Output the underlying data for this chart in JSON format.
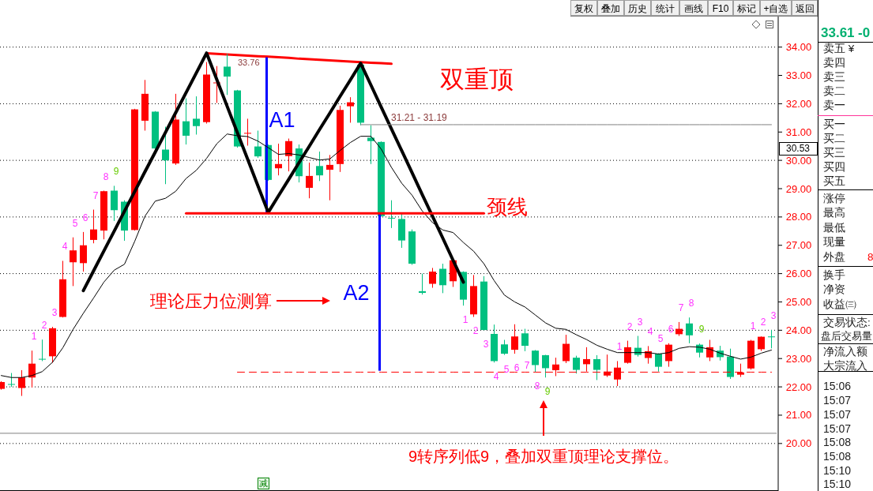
{
  "chart_data": {
    "type": "candlestick",
    "categories": [
      null,
      null,
      null,
      null,
      null,
      null,
      null,
      null,
      null,
      null,
      null,
      null,
      null,
      null,
      null,
      null,
      null,
      null,
      null,
      null,
      null,
      null,
      null,
      null,
      null,
      null,
      null,
      null,
      null,
      null,
      null,
      null,
      null,
      null,
      null,
      null,
      null,
      null,
      null,
      null,
      null,
      null,
      null,
      null,
      null,
      null,
      null,
      null,
      null,
      null,
      null,
      null,
      null,
      null,
      null,
      null,
      null,
      null,
      null,
      null,
      null,
      null,
      null,
      null,
      null,
      null,
      null,
      null,
      null,
      null,
      null,
      null,
      null,
      null,
      null,
      null
    ],
    "ohlc": [
      [
        21.93,
        22.2,
        21.9,
        22.17
      ],
      [
        22.1,
        22.49,
        22.0,
        22.08
      ],
      [
        21.96,
        22.59,
        21.68,
        22.33
      ],
      [
        22.33,
        23.28,
        21.98,
        22.82
      ],
      [
        22.99,
        23.67,
        22.91,
        22.97
      ],
      [
        23.08,
        24.12,
        22.85,
        24.07
      ],
      [
        24.47,
        26.45,
        24.45,
        25.8
      ],
      [
        26.4,
        27.28,
        25.56,
        26.82
      ],
      [
        26.37,
        27.47,
        26.07,
        27.0
      ],
      [
        27.19,
        28.26,
        27.07,
        27.56
      ],
      [
        27.52,
        28.93,
        27.21,
        28.91
      ],
      [
        28.93,
        29.1,
        27.86,
        28.24
      ],
      [
        28.54,
        28.59,
        27.16,
        27.52
      ],
      [
        27.54,
        31.82,
        27.52,
        31.8
      ],
      [
        31.4,
        32.84,
        31.05,
        32.35
      ],
      [
        31.72,
        31.74,
        30.4,
        30.42
      ],
      [
        30.38,
        31.19,
        29.16,
        30.0
      ],
      [
        29.89,
        32.35,
        29.84,
        31.44
      ],
      [
        31.38,
        32.19,
        30.56,
        30.87
      ],
      [
        31.47,
        32.26,
        30.91,
        31.21
      ],
      [
        31.35,
        33.47,
        31.3,
        33.03
      ],
      [
        32.73,
        33.33,
        32.03,
        32.75
      ],
      [
        33.31,
        33.76,
        32.31,
        32.96
      ],
      [
        32.47,
        32.49,
        30.45,
        30.49
      ],
      [
        30.95,
        31.47,
        30.52,
        30.97
      ],
      [
        30.49,
        31.05,
        30.09,
        30.14
      ],
      [
        30.54,
        30.56,
        29.28,
        29.31
      ],
      [
        29.72,
        30.59,
        29.47,
        29.87
      ],
      [
        30.15,
        30.77,
        29.61,
        30.68
      ],
      [
        30.42,
        30.56,
        29.22,
        29.44
      ],
      [
        29.03,
        29.92,
        28.66,
        29.45
      ],
      [
        29.8,
        30.31,
        29.27,
        29.47
      ],
      [
        29.67,
        30.19,
        28.59,
        29.84
      ],
      [
        29.87,
        31.93,
        29.59,
        31.78
      ],
      [
        31.91,
        32.23,
        31.33,
        32.05
      ],
      [
        33.38,
        33.42,
        31.24,
        31.33
      ],
      [
        30.8,
        31.24,
        29.87,
        30.68
      ],
      [
        30.65,
        30.67,
        28.01,
        28.03
      ],
      [
        27.97,
        28.59,
        27.61,
        27.95
      ],
      [
        27.93,
        28.12,
        26.91,
        27.17
      ],
      [
        27.49,
        27.56,
        26.31,
        26.35
      ],
      [
        25.38,
        26.0,
        25.26,
        25.32
      ],
      [
        25.64,
        26.2,
        25.5,
        26.07
      ],
      [
        26.17,
        26.35,
        25.31,
        25.59
      ],
      [
        25.73,
        26.49,
        25.53,
        26.47
      ],
      [
        26.06,
        26.08,
        24.87,
        25.08
      ],
      [
        24.56,
        25.95,
        24.47,
        25.56
      ],
      [
        25.72,
        25.91,
        24.0,
        24.01
      ],
      [
        23.87,
        24.2,
        22.86,
        22.91
      ],
      [
        23.5,
        23.66,
        23.13,
        23.17
      ],
      [
        23.31,
        24.21,
        23.17,
        23.78
      ],
      [
        23.89,
        24.05,
        23.26,
        23.45
      ],
      [
        23.28,
        23.3,
        22.52,
        22.77
      ],
      [
        23.12,
        23.13,
        22.33,
        22.66
      ],
      [
        22.59,
        23.03,
        22.38,
        22.79
      ],
      [
        22.91,
        23.84,
        22.84,
        23.52
      ],
      [
        23.03,
        23.1,
        22.47,
        22.6
      ],
      [
        22.8,
        23.4,
        22.54,
        22.98
      ],
      [
        22.98,
        23.12,
        22.24,
        22.6
      ],
      [
        22.4,
        23.14,
        22.35,
        22.54
      ],
      [
        22.26,
        22.91,
        22.03,
        22.68
      ],
      [
        22.85,
        23.63,
        22.82,
        23.4
      ],
      [
        23.38,
        23.8,
        23.07,
        23.13
      ],
      [
        23.02,
        23.44,
        22.82,
        23.26
      ],
      [
        23.17,
        23.19,
        22.54,
        22.71
      ],
      [
        22.91,
        23.54,
        22.71,
        23.49
      ],
      [
        23.86,
        24.29,
        23.8,
        24.05
      ],
      [
        24.24,
        24.45,
        23.54,
        23.82
      ],
      [
        23.49,
        23.53,
        23.04,
        23.21
      ],
      [
        23.04,
        23.66,
        22.91,
        23.4
      ],
      [
        23.28,
        23.45,
        22.93,
        23.05
      ],
      [
        23.07,
        23.35,
        22.28,
        22.35
      ],
      [
        22.43,
        22.82,
        22.35,
        22.51
      ],
      [
        22.65,
        23.66,
        22.61,
        23.63
      ],
      [
        23.33,
        23.78,
        23.27,
        23.77
      ],
      [
        23.78,
        24.01,
        23.36,
        23.76
      ]
    ],
    "colors": [
      "#ff0000",
      "#00c080",
      "#ff0000",
      "#ff0000",
      "#00c080",
      "#ff0000",
      "#ff0000",
      "#ff0000",
      "#ff0000",
      "#ff0000",
      "#ff0000",
      "#00c080",
      "#00c080",
      "#ff0000",
      "#ff0000",
      "#00c080",
      "#00c080",
      "#ff0000",
      "#00c080",
      "#00c080",
      "#ff0000",
      "#ff0000",
      "#00c080",
      "#00c080",
      "#ff0000",
      "#00c080",
      "#00c080",
      "#ff0000",
      "#ff0000",
      "#00c080",
      "#ff0000",
      "#00c080",
      "#ff0000",
      "#ff0000",
      "#ff0000",
      "#00c080",
      "#00c080",
      "#00c080",
      "#00c080",
      "#00c080",
      "#00c080",
      "#00c080",
      "#ff0000",
      "#00c080",
      "#ff0000",
      "#00c080",
      "#ff0000",
      "#00c080",
      "#00c080",
      "#00c080",
      "#ff0000",
      "#00c080",
      "#00c080",
      "#00c080",
      "#ff0000",
      "#ff0000",
      "#00c080",
      "#ff0000",
      "#00c080",
      "#ff0000",
      "#ff0000",
      "#ff0000",
      "#00c080",
      "#ff0000",
      "#00c080",
      "#ff0000",
      "#ff0000",
      "#00c080",
      "#00c080",
      "#ff0000",
      "#00c080",
      "#00c080",
      "#ff0000",
      "#ff0000",
      "#ff0000",
      "#00c080"
    ],
    "series": [
      {
        "type": "line",
        "color": "#000000",
        "values": [
          22.4,
          22.33,
          22.33,
          22.4,
          22.54,
          22.87,
          23.38,
          24.03,
          24.6,
          25.14,
          25.7,
          26.12,
          26.33,
          27.14,
          28.03,
          28.56,
          28.66,
          28.91,
          29.36,
          29.65,
          30.07,
          30.59,
          30.93,
          30.87,
          30.84,
          30.68,
          30.45,
          30.21,
          30.24,
          30.19,
          30.1,
          30.01,
          30.05,
          30.35,
          30.63,
          30.85,
          30.85,
          30.4,
          29.75,
          29.19,
          28.77,
          28.21,
          27.8,
          27.54,
          27.45,
          27.1,
          26.79,
          26.35,
          25.75,
          25.24,
          25.0,
          24.82,
          24.54,
          24.26,
          24.07,
          24.03,
          23.84,
          23.67,
          23.47,
          23.33,
          23.21,
          23.21,
          23.21,
          23.21,
          23.16,
          23.21,
          23.36,
          23.42,
          23.4,
          23.33,
          23.19,
          23.08,
          22.98,
          23.05,
          23.19,
          23.3
        ]
      },
      {
        "type": "line",
        "color": "#000000",
        "values": [
          null,
          null,
          null,
          null,
          null,
          null,
          null,
          null,
          25.4,
          26.1,
          26.8,
          27.5,
          28.2,
          28.9,
          29.6,
          30.29,
          30.99,
          31.69,
          32.39,
          33.09,
          33.79,
          32.85,
          31.91,
          30.97,
          30.04,
          29.1,
          28.16,
          28.75,
          29.33,
          29.92,
          30.5,
          31.09,
          31.67,
          32.26,
          32.84,
          33.43,
          32.66,
          31.88,
          31.11,
          30.34,
          29.57,
          28.79,
          28.02,
          27.25,
          26.47,
          25.7,
          null,
          null,
          null,
          null,
          null,
          null,
          null,
          null,
          null,
          null,
          null,
          null,
          null,
          null,
          null,
          null,
          null,
          null,
          null,
          null,
          null,
          null,
          null,
          null,
          null,
          null,
          null,
          null,
          null,
          null
        ]
      },
      {
        "type": "line",
        "color": "#ff0000",
        "values": [
          null,
          null,
          null,
          null,
          null,
          null,
          null,
          null,
          null,
          null,
          null,
          null,
          null,
          null,
          null,
          null,
          null,
          null,
          null,
          null,
          33.78,
          33.76,
          33.74,
          33.72,
          33.7,
          33.68,
          33.66,
          33.64,
          33.62,
          33.59,
          33.57,
          33.55,
          33.53,
          33.51,
          33.49,
          33.47,
          33.45,
          33.43,
          33.41,
          null,
          null,
          null,
          null,
          null,
          null,
          null,
          null,
          null,
          null,
          null,
          null,
          null,
          null,
          null,
          null,
          null,
          null,
          null,
          null,
          null,
          null,
          null,
          null,
          null,
          null,
          null,
          null,
          null,
          null,
          null,
          null,
          null,
          null,
          null,
          null,
          null
        ]
      },
      {
        "type": "line",
        "color": "#ff0000",
        "values": [
          null,
          null,
          null,
          null,
          null,
          null,
          null,
          null,
          null,
          null,
          null,
          null,
          null,
          null,
          null,
          null,
          null,
          null,
          28.13,
          28.13,
          28.13,
          28.13,
          28.13,
          28.13,
          28.13,
          28.13,
          28.13,
          28.13,
          28.13,
          28.13,
          28.13,
          28.13,
          28.13,
          28.13,
          28.13,
          28.13,
          28.13,
          28.13,
          28.13,
          28.13,
          28.13,
          28.13,
          28.13,
          28.13,
          28.13,
          28.13,
          28.13,
          28.13,
          null,
          null,
          null,
          null,
          null,
          null,
          null,
          null,
          null,
          null,
          null,
          null,
          null,
          null,
          null,
          null,
          null,
          null,
          null,
          null,
          null,
          null,
          null,
          null,
          null,
          null,
          null,
          null
        ]
      },
      {
        "type": "bar",
        "color": "#0000ff",
        "values": [
          null,
          null,
          null,
          null,
          null,
          null,
          null,
          null,
          null,
          null,
          null,
          null,
          null,
          null,
          null,
          null,
          null,
          null,
          null,
          null,
          null,
          null,
          null,
          null,
          null,
          null,
          5.48,
          null,
          null,
          null,
          null,
          null,
          null,
          null,
          null,
          null,
          null,
          null,
          null,
          null,
          null,
          null,
          null,
          null,
          null,
          null,
          null,
          null,
          null,
          null,
          null,
          null,
          null,
          null,
          null,
          null,
          null,
          null,
          null,
          null,
          null,
          null,
          null,
          null,
          null,
          null,
          null,
          null,
          null,
          null,
          null,
          null,
          null,
          null,
          null,
          null
        ],
        "base": [
          null,
          null,
          null,
          null,
          null,
          null,
          null,
          null,
          null,
          null,
          null,
          null,
          null,
          null,
          null,
          null,
          null,
          null,
          null,
          null,
          null,
          null,
          null,
          null,
          null,
          null,
          28.16,
          null,
          null,
          null,
          null,
          null,
          null,
          null,
          null,
          null,
          null,
          null,
          null,
          null,
          null,
          null,
          null,
          null,
          null,
          null,
          null,
          null,
          null,
          null,
          null,
          null,
          null,
          null,
          null,
          null,
          null,
          null,
          null,
          null,
          null,
          null,
          null,
          null,
          null,
          null,
          null,
          null,
          null,
          null,
          null,
          null,
          null,
          null,
          null,
          null
        ]
      },
      {
        "type": "bar",
        "color": "#0000ff",
        "values": [
          null,
          null,
          null,
          null,
          null,
          null,
          null,
          null,
          null,
          null,
          null,
          null,
          null,
          null,
          null,
          null,
          null,
          null,
          null,
          null,
          null,
          null,
          null,
          null,
          null,
          null,
          null,
          null,
          null,
          null,
          null,
          null,
          null,
          null,
          null,
          null,
          null,
          5.56,
          null,
          null,
          null,
          null,
          null,
          null,
          null,
          null,
          null,
          null,
          null,
          null,
          null,
          null,
          null,
          null,
          null,
          null,
          null,
          null,
          null,
          null,
          null,
          null,
          null,
          null,
          null,
          null,
          null,
          null,
          null,
          null,
          null,
          null,
          null,
          null,
          null,
          null
        ],
        "base": [
          null,
          null,
          null,
          null,
          null,
          null,
          null,
          null,
          null,
          null,
          null,
          null,
          null,
          null,
          null,
          null,
          null,
          null,
          null,
          null,
          null,
          null,
          null,
          null,
          null,
          null,
          null,
          null,
          null,
          null,
          null,
          null,
          null,
          null,
          null,
          null,
          null,
          22.57,
          null,
          null,
          null,
          null,
          null,
          null,
          null,
          null,
          null,
          null,
          null,
          null,
          null,
          null,
          null,
          null,
          null,
          null,
          null,
          null,
          null,
          null,
          null,
          null,
          null,
          null,
          null,
          null,
          null,
          null,
          null,
          null,
          null,
          null,
          null,
          null,
          null,
          null
        ]
      },
      {
        "type": "line",
        "color": "#ff0000",
        "line_style": "dashed",
        "values": [
          null,
          null,
          null,
          null,
          null,
          null,
          null,
          null,
          null,
          null,
          null,
          null,
          null,
          null,
          null,
          null,
          null,
          null,
          null,
          null,
          null,
          null,
          null,
          22.52,
          22.52,
          22.52,
          22.52,
          22.52,
          22.52,
          22.52,
          22.52,
          22.52,
          22.52,
          22.52,
          22.52,
          22.52,
          22.52,
          22.52,
          22.52,
          22.52,
          22.52,
          22.52,
          22.52,
          22.52,
          22.52,
          22.52,
          22.52,
          22.52,
          22.52,
          22.52,
          22.52,
          22.52,
          22.52,
          22.52,
          22.52,
          22.52,
          22.52,
          22.52,
          22.52,
          22.52,
          22.52,
          22.52,
          22.52,
          22.52,
          22.52,
          22.52,
          22.52,
          22.52,
          22.52,
          22.52,
          22.52,
          22.52,
          22.52,
          22.52,
          22.52,
          22.52
        ]
      },
      {
        "type": "line",
        "color": "#808080",
        "values": [
          null,
          null,
          null,
          null,
          null,
          null,
          null,
          null,
          null,
          null,
          null,
          null,
          null,
          null,
          null,
          null,
          null,
          null,
          null,
          null,
          null,
          null,
          null,
          null,
          null,
          null,
          null,
          null,
          null,
          null,
          null,
          null,
          null,
          null,
          null,
          31.26,
          31.26,
          31.26,
          31.26,
          31.26,
          31.26,
          31.26,
          31.26,
          31.26,
          31.26,
          31.26,
          31.26,
          31.26,
          31.26,
          31.26,
          31.26,
          31.26,
          31.26,
          31.26,
          31.26,
          31.26,
          31.26,
          31.26,
          31.26,
          31.26,
          31.26,
          31.26,
          31.26,
          31.26,
          31.26,
          31.26,
          31.26,
          31.26,
          31.26,
          31.26,
          31.26,
          31.26,
          31.26,
          31.26,
          31.26,
          31.26
        ]
      }
    ],
    "ref_lines": [
      {
        "axis": "y",
        "value": 20.36,
        "color": "#808080"
      }
    ],
    "ylim": [
      18.35,
      35.05
    ],
    "yticks": [
      {
        "value": 20,
        "label": "20.00"
      },
      {
        "value": 21,
        "label": "21.00"
      },
      {
        "value": 22,
        "label": "22.00"
      },
      {
        "value": 23,
        "label": "23.00"
      },
      {
        "value": 24,
        "label": "24.00"
      },
      {
        "value": 25,
        "label": "25.00"
      },
      {
        "value": 26,
        "label": "26.00"
      },
      {
        "value": 27,
        "label": "27.00"
      },
      {
        "value": 28,
        "label": "28.00"
      },
      {
        "value": 29,
        "label": "29.00"
      },
      {
        "value": 30,
        "label": "30.00"
      },
      {
        "value": 31,
        "label": "31.00"
      },
      {
        "value": 32,
        "label": "32.00"
      },
      {
        "value": 33,
        "label": "33.00"
      },
      {
        "value": 34,
        "label": "34.00"
      }
    ],
    "tick_labels": "y",
    "grid": "y",
    "annotations": [
      "双重顶",
      "A1",
      "A2",
      "颈线",
      "理论压力位测算",
      "9转序列低9，叠加双重顶理论支撑位。",
      "33.76",
      "31.21 - 31.19",
      "1",
      "2",
      "3",
      "4",
      "5",
      "6",
      "7",
      "8",
      "9",
      "1",
      "2",
      "3",
      "4",
      "5",
      "6",
      "7",
      "8",
      "9",
      "1",
      "2",
      "3",
      "4",
      "5",
      "6",
      "7",
      "8",
      "9",
      "1",
      "2",
      "3",
      "复权",
      "叠加",
      "历史",
      "统计",
      "画线",
      "F10",
      "标记",
      "+自选",
      "返回",
      "33.61",
      "-0",
      "卖五 ¥",
      "卖四",
      "卖三",
      "卖二",
      "卖一",
      "买一",
      "买二",
      "买三",
      "买四",
      "买五",
      "涨停",
      "最高",
      "最低",
      "现量",
      "外盘",
      "8",
      "换手",
      "净资",
      "收益㈢",
      "交易状态:",
      "盘后交易量",
      "净流入额",
      "大宗流入",
      "15:06",
      "15:07",
      "15:07",
      "15:07",
      "15:08",
      "15:08",
      "15:10",
      "15:10",
      "30.53",
      "减"
    ]
  }
}
